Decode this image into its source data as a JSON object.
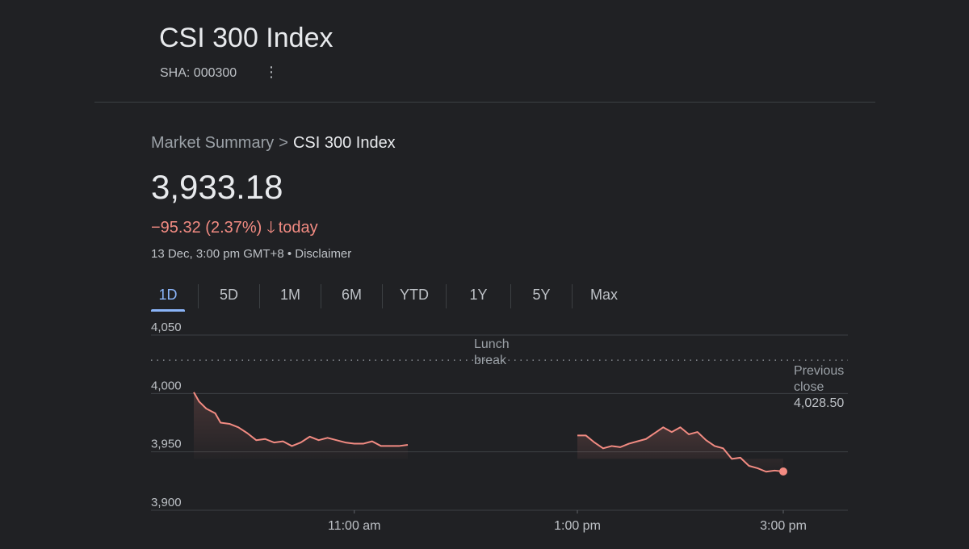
{
  "header": {
    "title": "CSI 300 Index",
    "ticker": "SHA: 000300",
    "menu_icon": "more-vert-icon"
  },
  "breadcrumb": {
    "root": "Market Summary",
    "separator": ">",
    "current": "CSI 300 Index"
  },
  "quote": {
    "price": "3,933.18",
    "change": "−95.32 (2.37%)",
    "direction_icon": "arrow-down-icon",
    "period": "today",
    "timestamp": "13 Dec, 3:00 pm GMT+8",
    "bullet": "•",
    "disclaimer": "Disclaimer"
  },
  "range_tabs": [
    {
      "label": "1D",
      "active": true
    },
    {
      "label": "5D",
      "active": false
    },
    {
      "label": "1M",
      "active": false
    },
    {
      "label": "6M",
      "active": false
    },
    {
      "label": "YTD",
      "active": false
    },
    {
      "label": "1Y",
      "active": false
    },
    {
      "label": "5Y",
      "active": false
    },
    {
      "label": "Max",
      "active": false
    }
  ],
  "colors": {
    "background": "#202124",
    "line": "#f28b82",
    "active_tab": "#8ab4f8",
    "grid": "#3c4043"
  },
  "chart_data": {
    "type": "line",
    "y_ticks": [
      "4,050",
      "4,000",
      "3,950",
      "3,900"
    ],
    "ylim": [
      3900,
      4050
    ],
    "x_ticks": [
      {
        "label": "11:00 am",
        "t": "11:00"
      },
      {
        "label": "1:00 pm",
        "t": "13:00"
      },
      {
        "label": "3:00 pm",
        "t": "15:00"
      }
    ],
    "xlim": [
      "9:30",
      "15:40"
    ],
    "previous_close": {
      "value": 4028.5,
      "label_line1": "Previous",
      "label_line2": "close",
      "value_label": "4,028.50"
    },
    "lunch_break": {
      "line1": "Lunch",
      "line2": "break"
    },
    "series": [
      {
        "segment": "morning",
        "points": [
          [
            "9:30",
            4001
          ],
          [
            "9:33",
            3993
          ],
          [
            "9:37",
            3987
          ],
          [
            "9:42",
            3983
          ],
          [
            "9:45",
            3975
          ],
          [
            "9:50",
            3974
          ],
          [
            "9:55",
            3971
          ],
          [
            "10:00",
            3966
          ],
          [
            "10:05",
            3960
          ],
          [
            "10:10",
            3961
          ],
          [
            "10:15",
            3958
          ],
          [
            "10:20",
            3959
          ],
          [
            "10:25",
            3955
          ],
          [
            "10:30",
            3958
          ],
          [
            "10:35",
            3963
          ],
          [
            "10:40",
            3960
          ],
          [
            "10:45",
            3962
          ],
          [
            "10:50",
            3960
          ],
          [
            "10:55",
            3958
          ],
          [
            "11:00",
            3957
          ],
          [
            "11:05",
            3957
          ],
          [
            "11:10",
            3959
          ],
          [
            "11:15",
            3955
          ],
          [
            "11:20",
            3955
          ],
          [
            "11:25",
            3955
          ],
          [
            "11:30",
            3956
          ]
        ]
      },
      {
        "segment": "afternoon",
        "points": [
          [
            "13:00",
            3964
          ],
          [
            "13:05",
            3964
          ],
          [
            "13:10",
            3958
          ],
          [
            "13:15",
            3953
          ],
          [
            "13:20",
            3955
          ],
          [
            "13:25",
            3954
          ],
          [
            "13:30",
            3957
          ],
          [
            "13:35",
            3959
          ],
          [
            "13:40",
            3961
          ],
          [
            "13:45",
            3966
          ],
          [
            "13:50",
            3971
          ],
          [
            "13:55",
            3967
          ],
          [
            "14:00",
            3971
          ],
          [
            "14:05",
            3965
          ],
          [
            "14:10",
            3967
          ],
          [
            "14:15",
            3960
          ],
          [
            "14:20",
            3955
          ],
          [
            "14:25",
            3953
          ],
          [
            "14:30",
            3944
          ],
          [
            "14:35",
            3945
          ],
          [
            "14:40",
            3938
          ],
          [
            "14:45",
            3936
          ],
          [
            "14:50",
            3933
          ],
          [
            "14:55",
            3934
          ],
          [
            "15:00",
            3933.18
          ]
        ]
      }
    ]
  }
}
